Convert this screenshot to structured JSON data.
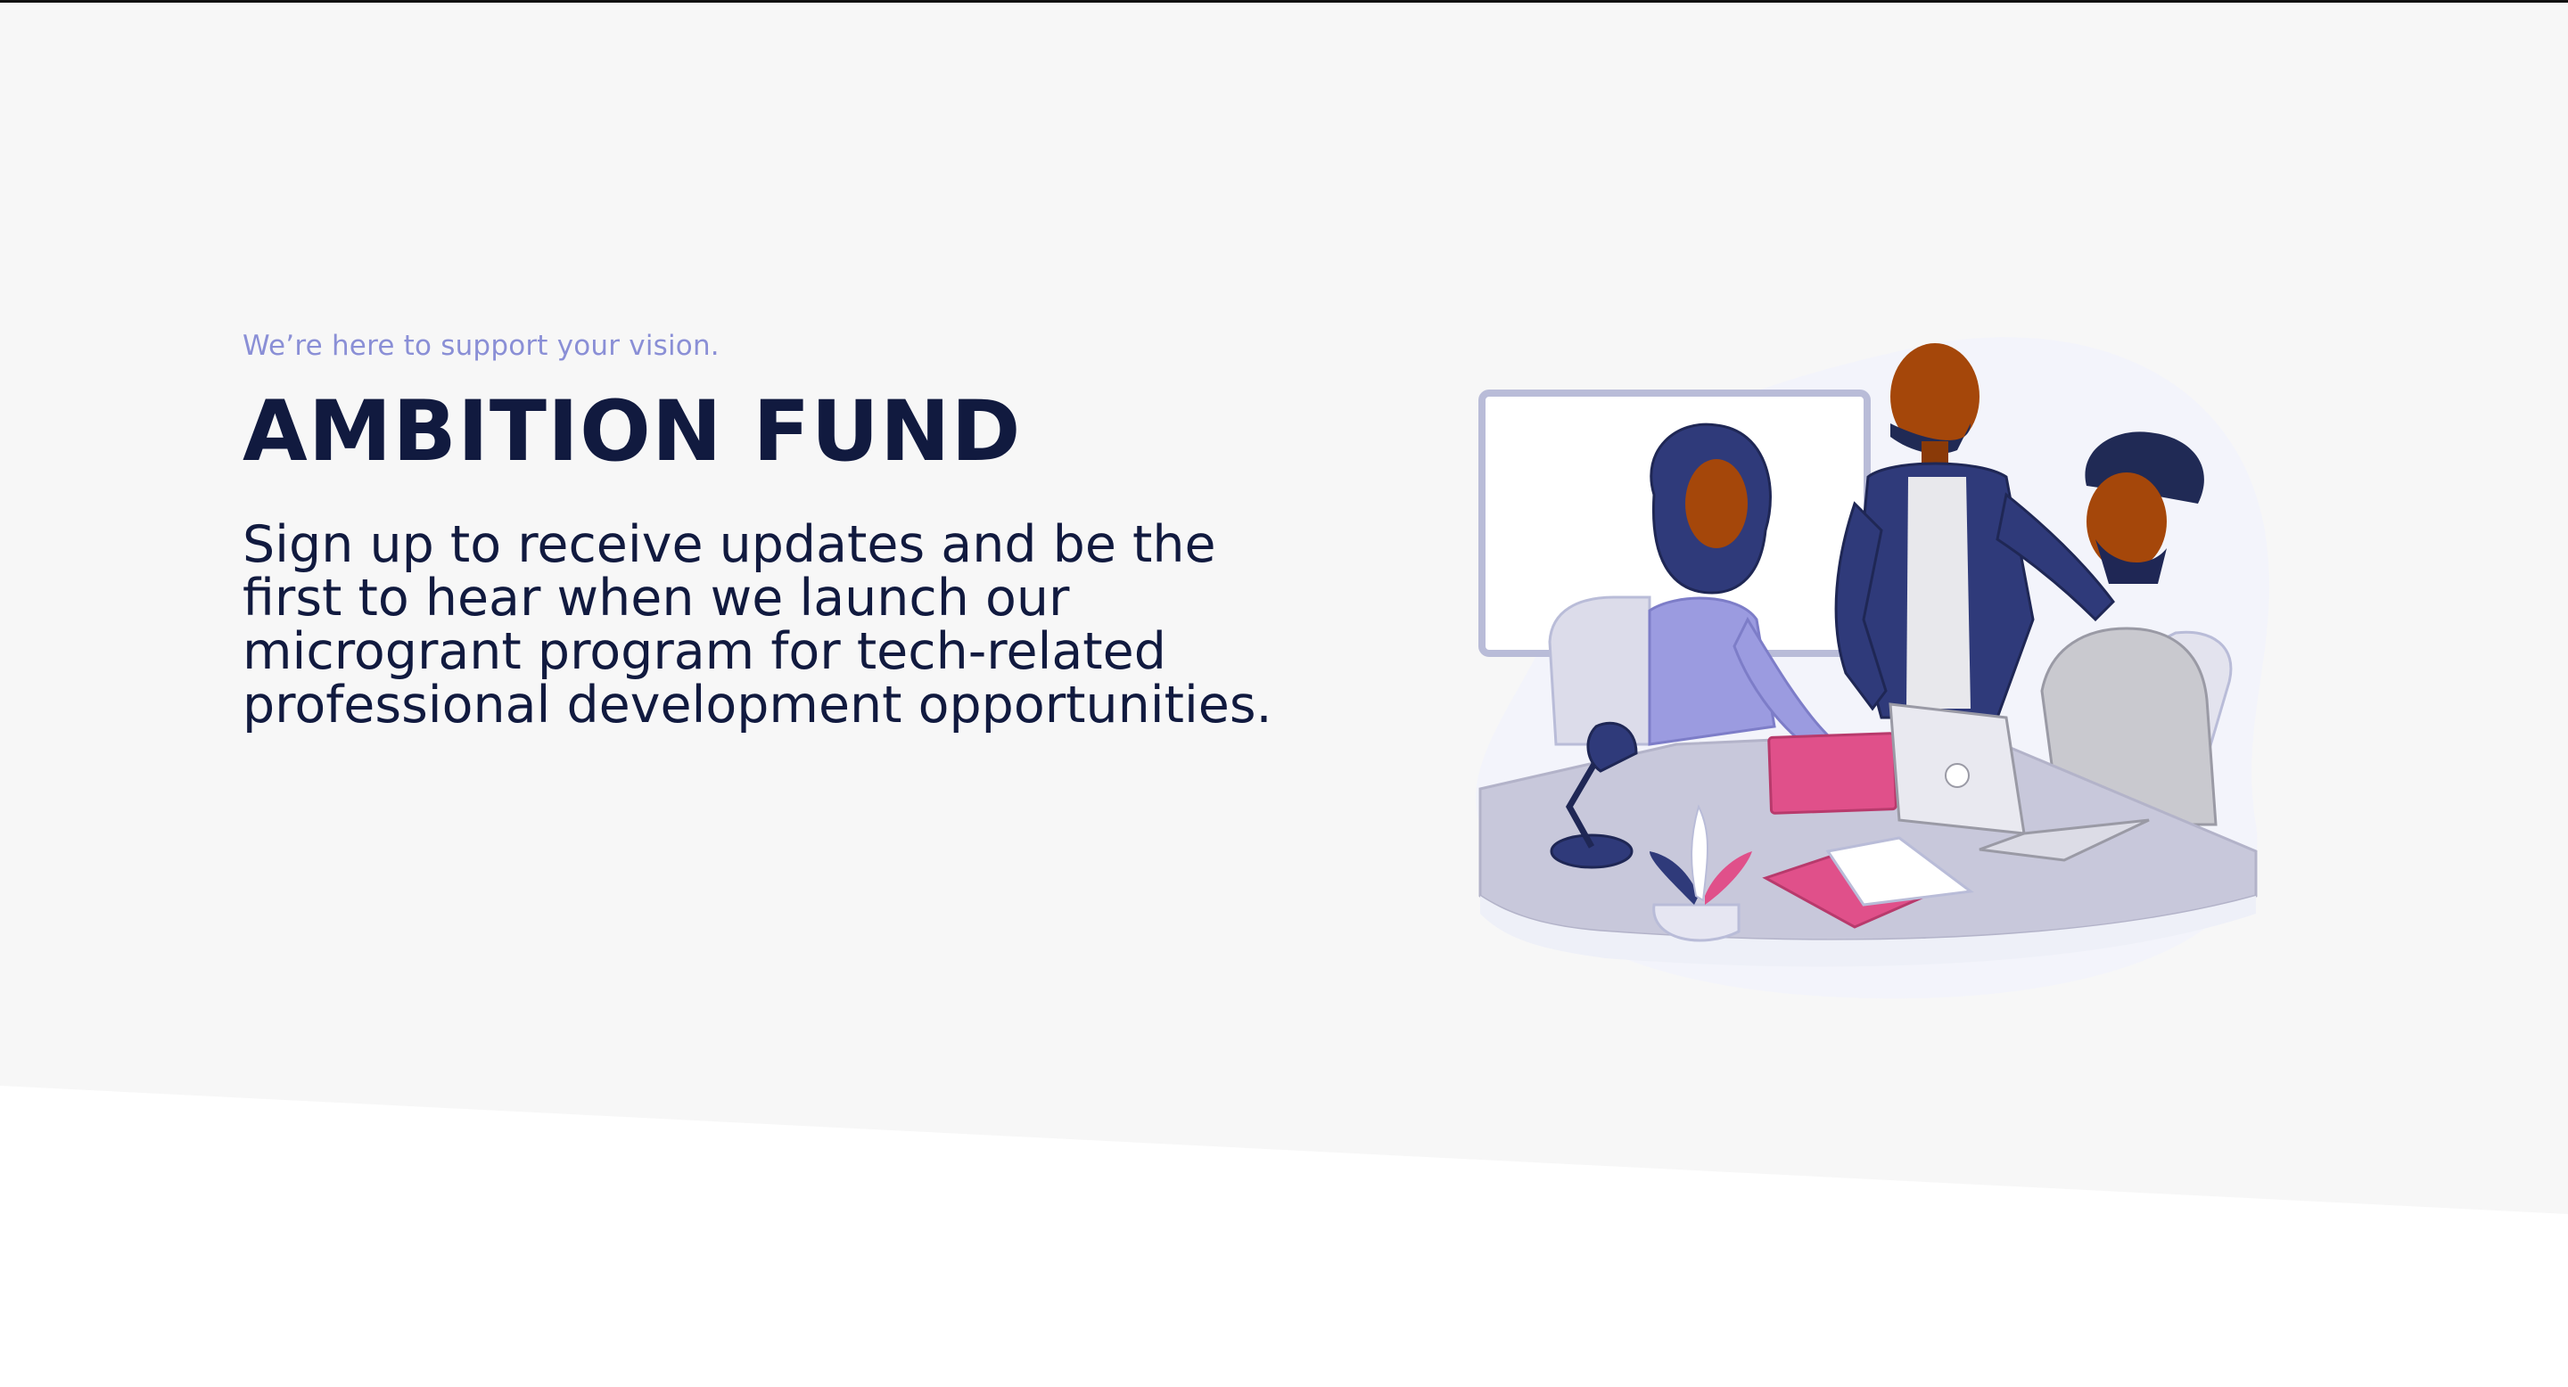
{
  "hero": {
    "tagline": "We’re here to support your vision.",
    "title": "AMBITION FUND",
    "description": "Sign up to receive updates and be the first to hear when we launch our microgrant program for tech-related professional development opportunities."
  },
  "colors": {
    "hero_background": "#f7f7f7",
    "page_background": "#ffffff",
    "tagline": "#8a8fd6",
    "heading": "#111a3f",
    "accent_navy": "#2f3a7a",
    "accent_lavender": "#9b9be0",
    "accent_pink": "#e0508a",
    "skin": "#a5470a"
  },
  "illustration": {
    "subject": "three people collaborating around a desk with a laptop, notebook, lamp and plant"
  }
}
